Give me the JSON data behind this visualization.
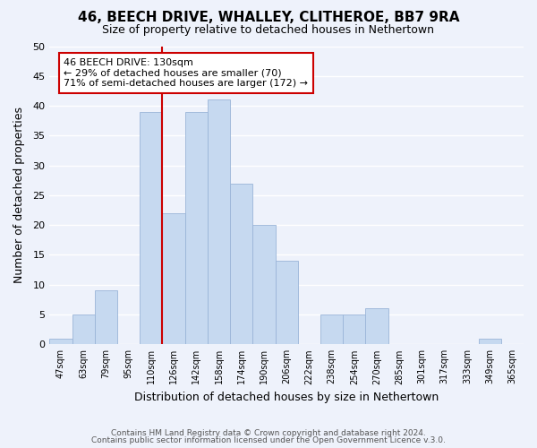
{
  "title": "46, BEECH DRIVE, WHALLEY, CLITHEROE, BB7 9RA",
  "subtitle": "Size of property relative to detached houses in Nethertown",
  "xlabel": "Distribution of detached houses by size in Nethertown",
  "ylabel": "Number of detached properties",
  "bar_labels": [
    "47sqm",
    "63sqm",
    "79sqm",
    "95sqm",
    "110sqm",
    "126sqm",
    "142sqm",
    "158sqm",
    "174sqm",
    "190sqm",
    "206sqm",
    "222sqm",
    "238sqm",
    "254sqm",
    "270sqm",
    "285sqm",
    "301sqm",
    "317sqm",
    "333sqm",
    "349sqm",
    "365sqm"
  ],
  "bar_heights": [
    1,
    5,
    9,
    0,
    39,
    22,
    39,
    41,
    27,
    20,
    14,
    0,
    5,
    5,
    6,
    0,
    0,
    0,
    0,
    1,
    0
  ],
  "bar_color": "#c6d9f0",
  "bar_edge_color": "#9ab5d8",
  "vline_color": "#cc0000",
  "ylim": [
    0,
    50
  ],
  "yticks": [
    0,
    5,
    10,
    15,
    20,
    25,
    30,
    35,
    40,
    45,
    50
  ],
  "annotation_title": "46 BEECH DRIVE: 130sqm",
  "annotation_line1": "← 29% of detached houses are smaller (70)",
  "annotation_line2": "71% of semi-detached houses are larger (172) →",
  "annotation_box_color": "#ffffff",
  "annotation_box_edge": "#cc0000",
  "footer1": "Contains HM Land Registry data © Crown copyright and database right 2024.",
  "footer2": "Contains public sector information licensed under the Open Government Licence v.3.0.",
  "background_color": "#eef2fb",
  "grid_color": "#ffffff"
}
